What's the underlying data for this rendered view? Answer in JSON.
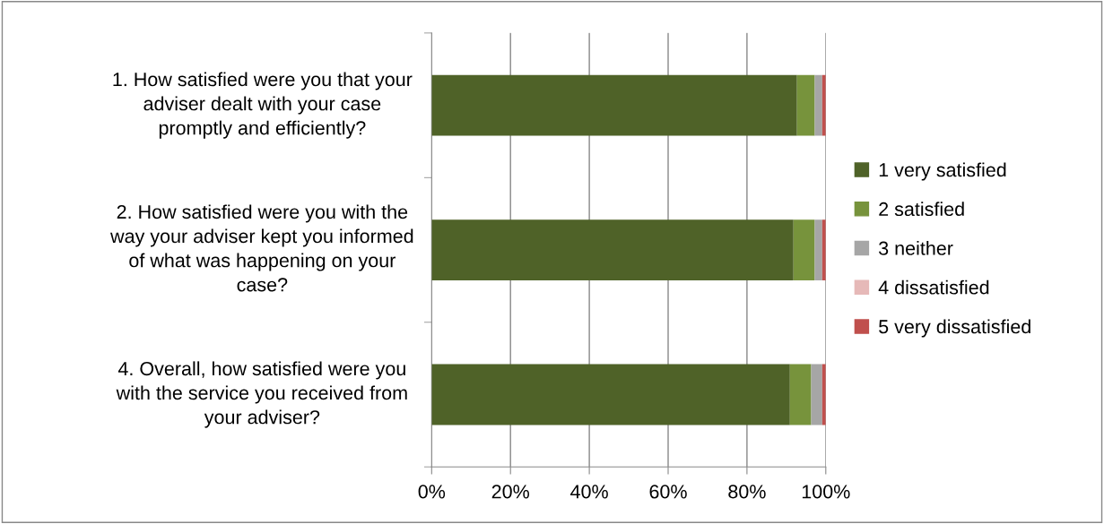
{
  "chart_data": {
    "type": "bar",
    "orientation": "horizontal",
    "stacked": true,
    "categories": [
      "1. How satisfied were you that your adviser dealt with your case promptly and efficiently?",
      "2. How satisfied were you with the way your adviser kept you informed of what was happening on your case?",
      "4. Overall, how satisfied were you with the service you received from your adviser?"
    ],
    "series": [
      {
        "name": "1 very satisfied",
        "color": "#4f6228",
        "values": [
          92.7,
          91.8,
          90.9
        ]
      },
      {
        "name": "2 satisfied",
        "color": "#77933c",
        "values": [
          4.5,
          5.4,
          5.4
        ]
      },
      {
        "name": "3 neither",
        "color": "#a6a6a6",
        "values": [
          1.9,
          1.9,
          2.8
        ]
      },
      {
        "name": "4 dissatisfied",
        "color": "#e6b9b8",
        "values": [
          0,
          0,
          0
        ]
      },
      {
        "name": "5 very dissatisfied",
        "color": "#c0504d",
        "values": [
          0.9,
          0.9,
          0.9
        ]
      }
    ],
    "xlim": [
      0,
      100
    ],
    "xticks": [
      {
        "value": 0,
        "label": "0%"
      },
      {
        "value": 20,
        "label": "20%"
      },
      {
        "value": 40,
        "label": "40%"
      },
      {
        "value": 60,
        "label": "60%"
      },
      {
        "value": 80,
        "label": "80%"
      },
      {
        "value": 100,
        "label": "100%"
      }
    ],
    "grid": "x",
    "legend": "right"
  }
}
